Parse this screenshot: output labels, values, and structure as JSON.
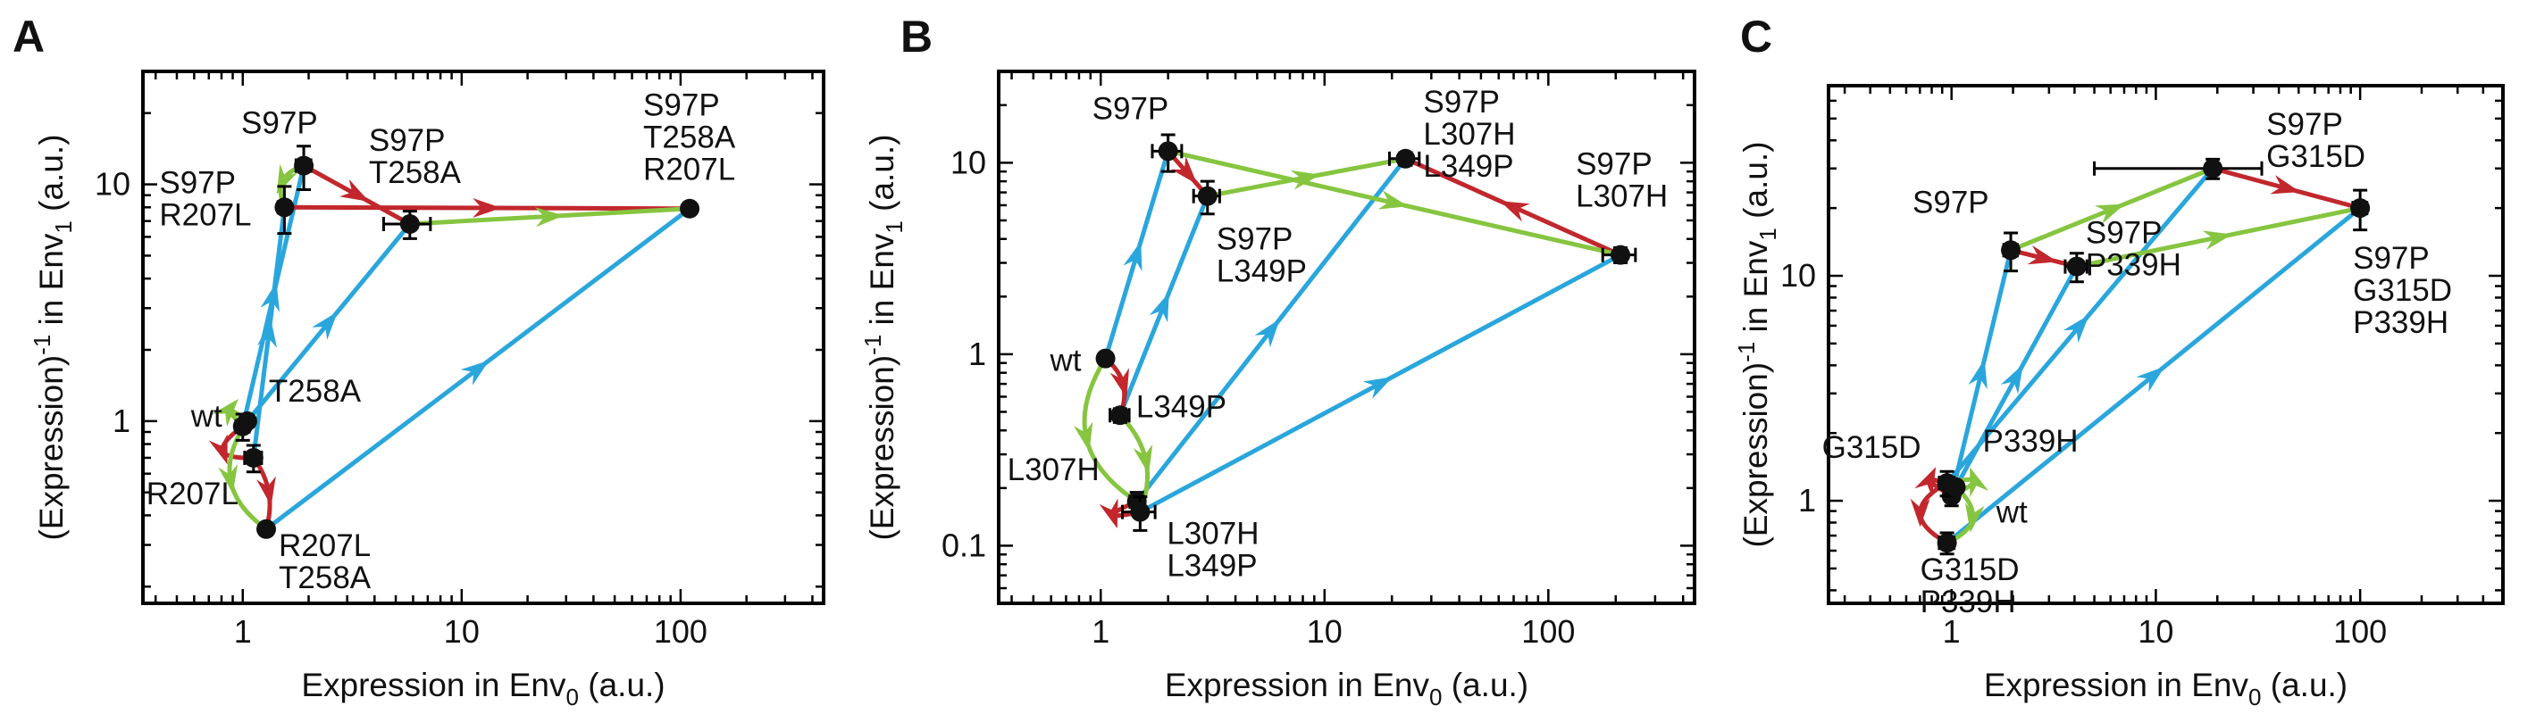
{
  "chart_data": [
    {
      "panel": "A",
      "type": "scatter",
      "xscale": "log",
      "yscale": "log",
      "xlim": [
        0.35,
        450
      ],
      "ylim": [
        0.17,
        30
      ],
      "xticks": [
        1,
        10,
        100
      ],
      "xtick_labels": [
        "1",
        "10",
        "100"
      ],
      "yticks": [
        1,
        10
      ],
      "ytick_labels": [
        "1",
        "10"
      ],
      "xlabel": {
        "main": "Expression in Env",
        "sub": "0",
        "tail": " (a.u.)"
      },
      "ylabel": {
        "main": "(Expression)",
        "sup": "-1",
        "mid": " in Env",
        "sub": "1",
        "tail": " (a.u.)"
      },
      "colors": {
        "blue": "#2aa6dc",
        "green": "#86c540",
        "red": "#c1272d"
      },
      "points": [
        {
          "id": "wt",
          "x": 1.0,
          "y": 0.95,
          "xerr": 0.07,
          "yerr": 0.12,
          "label_lines": [
            "wt"
          ],
          "label_dx": -58,
          "label_dy": 0
        },
        {
          "id": "R207L",
          "x": 1.12,
          "y": 0.7,
          "xerr": 0.1,
          "yerr": 0.09,
          "label_lines": [
            "R207L"
          ],
          "label_dx": -120,
          "label_dy": 52
        },
        {
          "id": "T258A",
          "x": 1.05,
          "y": 1.0,
          "xerr": 0.0,
          "yerr": 0.0,
          "label_lines": [
            "T258A"
          ],
          "label_dx": 24,
          "label_dy": -22
        },
        {
          "id": "R207L T258A",
          "x": 1.28,
          "y": 0.35,
          "xerr": 0.0,
          "yerr": 0.0,
          "label_lines": [
            "R207L",
            "T258A"
          ],
          "label_dx": 14,
          "label_dy": 30
        },
        {
          "id": "S97P",
          "x": 1.9,
          "y": 12.0,
          "xerr": 0.15,
          "yerr": 2.5,
          "label_lines": [
            "S97P"
          ],
          "label_dx": -70,
          "label_dy": -36
        },
        {
          "id": "S97P R207L",
          "x": 1.55,
          "y": 8.0,
          "xerr": 0.1,
          "yerr": 1.8,
          "label_lines": [
            "S97P",
            "R207L"
          ],
          "label_dx": -140,
          "label_dy": -16
        },
        {
          "id": "S97P T258A",
          "x": 5.8,
          "y": 6.8,
          "xerr": 1.4,
          "yerr": 0.9,
          "label_lines": [
            "S97P",
            "T258A"
          ],
          "label_dx": -46,
          "label_dy": -82
        },
        {
          "id": "S97P T258A R207L",
          "x": 110,
          "y": 7.9,
          "xerr": 0.0,
          "yerr": 0.0,
          "label_lines": [
            "S97P",
            "T258A",
            "R207L"
          ],
          "label_dx": -52,
          "label_dy": -104
        }
      ],
      "arrows": [
        {
          "from": "wt",
          "to": "S97P",
          "color": "blue"
        },
        {
          "from": "R207L",
          "to": "S97P R207L",
          "color": "blue"
        },
        {
          "from": "T258A",
          "to": "S97P T258A",
          "color": "blue"
        },
        {
          "from": "R207L T258A",
          "to": "S97P T258A R207L",
          "color": "blue"
        },
        {
          "from": "S97P",
          "to": "S97P T258A",
          "color": "red"
        },
        {
          "from": "S97P R207L",
          "to": "S97P T258A R207L",
          "color": "red"
        },
        {
          "from": "S97P T258A",
          "to": "S97P T258A R207L",
          "color": "green"
        },
        {
          "from": "S97P",
          "to": "S97P R207L",
          "color": "green",
          "curve": 14
        },
        {
          "from": "wt",
          "to": "R207L",
          "color": "red",
          "curve": 30
        },
        {
          "from": "wt",
          "to": "T258A",
          "color": "green",
          "curve": -24
        },
        {
          "from": "R207L",
          "to": "R207L T258A",
          "color": "red",
          "curve": -10
        },
        {
          "from": "T258A",
          "to": "R207L T258A",
          "color": "green",
          "curve": 30
        }
      ]
    },
    {
      "panel": "B",
      "type": "scatter",
      "xscale": "log",
      "yscale": "log",
      "xlim": [
        0.35,
        450
      ],
      "ylim": [
        0.05,
        30
      ],
      "xticks": [
        1,
        10,
        100
      ],
      "xtick_labels": [
        "1",
        "10",
        "100"
      ],
      "yticks": [
        0.1,
        1,
        10
      ],
      "ytick_labels": [
        "0.1",
        "1",
        "10"
      ],
      "xlabel": {
        "main": "Expression in Env",
        "sub": "0",
        "tail": " (a.u.)"
      },
      "ylabel": {
        "main": "(Expression)",
        "sup": "-1",
        "mid": " in Env",
        "sub": "1",
        "tail": " (a.u.)"
      },
      "colors": {
        "blue": "#2aa6dc",
        "green": "#86c540",
        "red": "#c1272d"
      },
      "points": [
        {
          "id": "wt",
          "x": 1.05,
          "y": 0.95,
          "xerr": 0.0,
          "yerr": 0.0,
          "label_lines": [
            "wt"
          ],
          "label_dx": -62,
          "label_dy": 14
        },
        {
          "id": "L349P",
          "x": 1.22,
          "y": 0.48,
          "xerr": 0.12,
          "yerr": 0.04,
          "label_lines": [
            "L349P"
          ],
          "label_dx": 18,
          "label_dy": 2
        },
        {
          "id": "L307H",
          "x": 1.45,
          "y": 0.17,
          "xerr": 0.1,
          "yerr": 0.02,
          "label_lines": [
            "L307H"
          ],
          "label_dx": -145,
          "label_dy": -24
        },
        {
          "id": "L307H L349P",
          "x": 1.5,
          "y": 0.15,
          "xerr": 0.25,
          "yerr": 0.03,
          "label_lines": [
            "L307H",
            "L349P"
          ],
          "label_dx": 30,
          "label_dy": 36
        },
        {
          "id": "S97P",
          "x": 2.0,
          "y": 11.5,
          "xerr": 0.3,
          "yerr": 2.5,
          "label_lines": [
            "S97P"
          ],
          "label_dx": -85,
          "label_dy": -36
        },
        {
          "id": "S97P L349P",
          "x": 3.0,
          "y": 6.7,
          "xerr": 0.4,
          "yerr": 1.3,
          "label_lines": [
            "S97P",
            "L349P"
          ],
          "label_dx": 10,
          "label_dy": 60
        },
        {
          "id": "S97P L307H L349P",
          "x": 23.0,
          "y": 10.5,
          "xerr": 3.5,
          "yerr": 0.8,
          "label_lines": [
            "S97P",
            "L307H",
            "L349P"
          ],
          "label_dx": 20,
          "label_dy": -52
        },
        {
          "id": "S97P L307H",
          "x": 210,
          "y": 3.3,
          "xerr": 35,
          "yerr": 0.3,
          "label_lines": [
            "S97P",
            "L307H"
          ],
          "label_dx": -50,
          "label_dy": -90
        }
      ],
      "arrows": [
        {
          "from": "wt",
          "to": "S97P",
          "color": "blue"
        },
        {
          "from": "L349P",
          "to": "S97P L349P",
          "color": "blue"
        },
        {
          "from": "L307H",
          "to": "S97P L307H L349P",
          "color": "blue"
        },
        {
          "from": "L307H L349P",
          "to": "S97P L307H",
          "color": "blue"
        },
        {
          "from": "S97P",
          "to": "S97P L349P",
          "color": "red"
        },
        {
          "from": "S97P L307H",
          "to": "S97P L307H L349P",
          "color": "red"
        },
        {
          "from": "S97P",
          "to": "S97P L307H",
          "color": "green"
        },
        {
          "from": "S97P L349P",
          "to": "S97P L307H L349P",
          "color": "green"
        },
        {
          "from": "wt",
          "to": "L349P",
          "color": "red",
          "curve": -12
        },
        {
          "from": "wt",
          "to": "L307H",
          "color": "green",
          "curve": 40
        },
        {
          "from": "L349P",
          "to": "L307H L349P",
          "color": "green",
          "curve": -18
        },
        {
          "from": "L307H",
          "to": "L307H L349P",
          "color": "red",
          "curve": 30
        }
      ]
    },
    {
      "panel": "C",
      "type": "scatter",
      "xscale": "log",
      "yscale": "log",
      "xlim": [
        0.25,
        500
      ],
      "ylim": [
        0.35,
        70
      ],
      "xticks": [
        1,
        10,
        100
      ],
      "xtick_labels": [
        "1",
        "10",
        "100"
      ],
      "yticks": [
        1,
        10
      ],
      "ytick_labels": [
        "1",
        "10"
      ],
      "xlabel": {
        "main": "Expression in Env",
        "sub": "0",
        "tail": " (a.u.)"
      },
      "ylabel": {
        "main": "(Expression)",
        "sup": "-1",
        "mid": " in Env",
        "sub": "1",
        "tail": " (a.u.)"
      },
      "colors": {
        "blue": "#2aa6dc",
        "green": "#86c540",
        "red": "#c1272d"
      },
      "points": [
        {
          "id": "wt",
          "x": 1.0,
          "y": 1.05,
          "xerr": 0.06,
          "yerr": 0.1,
          "label_lines": [
            "wt"
          ],
          "label_dx": 50,
          "label_dy": 30
        },
        {
          "id": "G315D",
          "x": 0.95,
          "y": 1.2,
          "xerr": 0.08,
          "yerr": 0.15,
          "label_lines": [
            "G315D"
          ],
          "label_dx": -140,
          "label_dy": -28
        },
        {
          "id": "P339H",
          "x": 1.05,
          "y": 1.15,
          "xerr": 0.0,
          "yerr": 0.0,
          "label_lines": [
            "P339H"
          ],
          "label_dx": 30,
          "label_dy": -40
        },
        {
          "id": "G315D P339H",
          "x": 0.95,
          "y": 0.65,
          "xerr": 0.08,
          "yerr": 0.07,
          "label_lines": [
            "G315D",
            "P339H"
          ],
          "label_dx": -30,
          "label_dy": 42
        },
        {
          "id": "S97P",
          "x": 1.95,
          "y": 13.0,
          "xerr": 0.15,
          "yerr": 2.5,
          "label_lines": [
            "S97P"
          ],
          "label_dx": -110,
          "label_dy": -42
        },
        {
          "id": "S97P P339H",
          "x": 4.1,
          "y": 11.0,
          "xerr": 0.5,
          "yerr": 1.6,
          "label_lines": [
            "S97P",
            "P339H"
          ],
          "label_dx": 10,
          "label_dy": -26
        },
        {
          "id": "S97P G315D",
          "x": 19.0,
          "y": 30.0,
          "xerr": 14,
          "yerr": 3.0,
          "label_lines": [
            "S97P",
            "G315D"
          ],
          "label_dx": 60,
          "label_dy": -38
        },
        {
          "id": "S97P G315D P339H",
          "x": 100,
          "y": 20.0,
          "xerr": 8,
          "yerr": 4.0,
          "label_lines": [
            "S97P",
            "G315D",
            "P339H"
          ],
          "label_dx": -8,
          "label_dy": 68
        }
      ],
      "arrows": [
        {
          "from": "wt",
          "to": "S97P",
          "color": "blue"
        },
        {
          "from": "P339H",
          "to": "S97P P339H",
          "color": "blue"
        },
        {
          "from": "G315D",
          "to": "S97P G315D",
          "color": "blue"
        },
        {
          "from": "G315D P339H",
          "to": "S97P G315D P339H",
          "color": "blue"
        },
        {
          "from": "S97P",
          "to": "S97P P339H",
          "color": "red"
        },
        {
          "from": "S97P G315D",
          "to": "S97P G315D P339H",
          "color": "red"
        },
        {
          "from": "S97P",
          "to": "S97P G315D",
          "color": "green"
        },
        {
          "from": "S97P P339H",
          "to": "S97P G315D P339H",
          "color": "green"
        },
        {
          "from": "wt",
          "to": "G315D",
          "color": "green",
          "curve": 30
        },
        {
          "from": "wt",
          "to": "P339H",
          "color": "red",
          "curve": -30
        },
        {
          "from": "G315D",
          "to": "G315D P339H",
          "color": "red",
          "curve": 30
        },
        {
          "from": "P339H",
          "to": "G315D P339H",
          "color": "green",
          "curve": -24
        }
      ]
    }
  ]
}
